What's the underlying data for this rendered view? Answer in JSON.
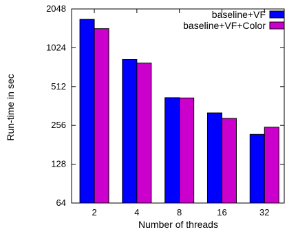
{
  "chart_data": {
    "type": "bar",
    "categories": [
      "2",
      "4",
      "8",
      "16",
      "32"
    ],
    "series": [
      {
        "name": "baseline+VF",
        "values": [
          1700,
          830,
          420,
          320,
          218
        ],
        "color": "#0000ff"
      },
      {
        "name": "baseline+VF+Color",
        "values": [
          1440,
          780,
          418,
          290,
          248
        ],
        "color": "#cc00cc"
      }
    ],
    "xlabel": "Number of threads",
    "ylabel": "Run-time in sec",
    "y_scale": "log2",
    "ylim": [
      64,
      2048
    ],
    "yticks": [
      64,
      128,
      256,
      512,
      1024,
      2048
    ],
    "ytick_labels": [
      "64",
      "128",
      "256",
      "512",
      "1024",
      "2048"
    ],
    "grid": false,
    "legend_position": "top-right"
  }
}
